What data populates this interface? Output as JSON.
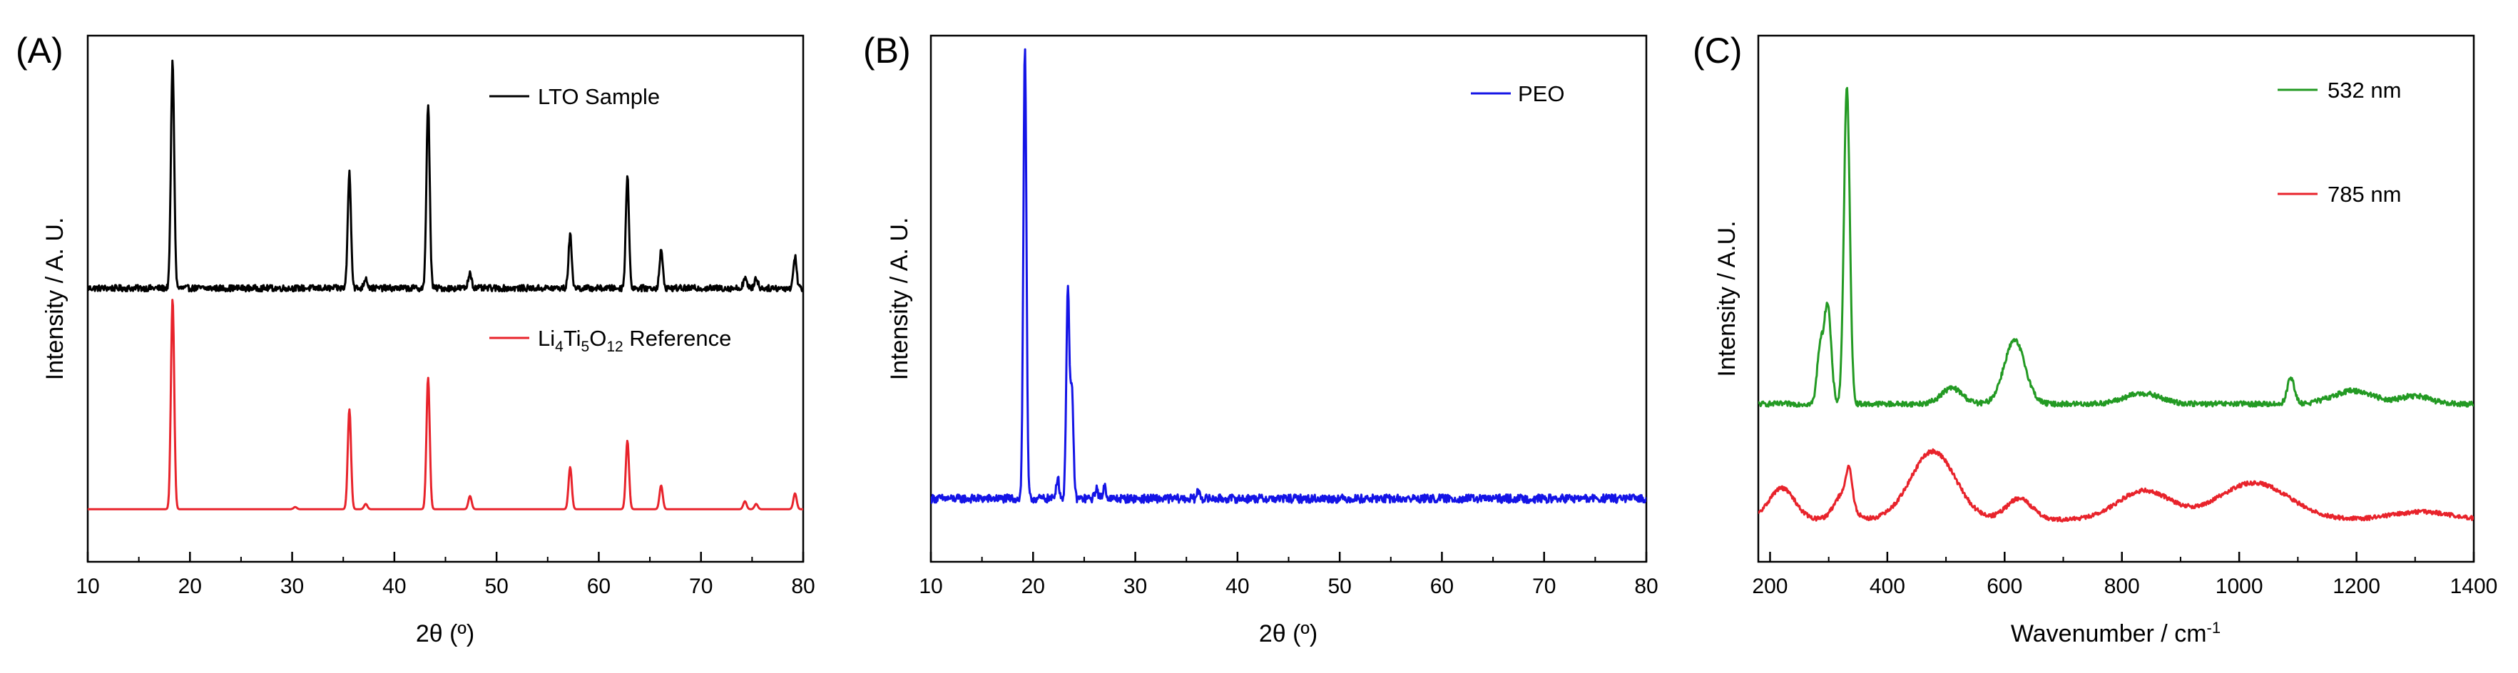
{
  "chart_data": [
    {
      "type": "line",
      "panel_label": "(A)",
      "xlabel": "2θ (º)",
      "ylabel": "Intensity / A. U.",
      "xlim": [
        10,
        80
      ],
      "xticks": [
        "10",
        "20",
        "30",
        "40",
        "50",
        "60",
        "70",
        "80"
      ],
      "yticks": false,
      "legend_placement": "top-right / middle-right, per series",
      "series": [
        {
          "name": "LTO Sample",
          "color": "#000000",
          "baseline": 0.52,
          "noise": 0.006,
          "peaks": [
            {
              "x": 18.3,
              "height": 0.43
            },
            {
              "x": 35.6,
              "height": 0.22
            },
            {
              "x": 37.2,
              "height": 0.02
            },
            {
              "x": 43.3,
              "height": 0.35
            },
            {
              "x": 47.4,
              "height": 0.03
            },
            {
              "x": 57.2,
              "height": 0.1
            },
            {
              "x": 62.8,
              "height": 0.21
            },
            {
              "x": 66.1,
              "height": 0.07
            },
            {
              "x": 74.3,
              "height": 0.02
            },
            {
              "x": 75.4,
              "height": 0.02
            },
            {
              "x": 79.2,
              "height": 0.06
            }
          ]
        },
        {
          "name_parts": [
            "Li",
            "4",
            "Ti",
            "5",
            "O",
            "12",
            " Reference"
          ],
          "color": "#e8232b",
          "baseline": 0.1,
          "noise": 0.0,
          "peaks": [
            {
              "x": 18.3,
              "height": 0.4
            },
            {
              "x": 30.3,
              "height": 0.004
            },
            {
              "x": 35.6,
              "height": 0.19
            },
            {
              "x": 37.2,
              "height": 0.01
            },
            {
              "x": 43.3,
              "height": 0.25
            },
            {
              "x": 47.4,
              "height": 0.025
            },
            {
              "x": 57.2,
              "height": 0.08
            },
            {
              "x": 62.8,
              "height": 0.13
            },
            {
              "x": 66.1,
              "height": 0.045
            },
            {
              "x": 74.3,
              "height": 0.015
            },
            {
              "x": 75.4,
              "height": 0.01
            },
            {
              "x": 79.2,
              "height": 0.03
            }
          ]
        }
      ]
    },
    {
      "type": "line",
      "panel_label": "(B)",
      "xlabel": "2θ (º)",
      "ylabel": "Intensity / A. U.",
      "xlim": [
        10,
        80
      ],
      "xticks": [
        "10",
        "20",
        "30",
        "40",
        "50",
        "60",
        "70",
        "80"
      ],
      "yticks": false,
      "legend_placement": "top-right",
      "series": [
        {
          "name": "PEO",
          "color": "#1414e6",
          "baseline": 0.12,
          "noise": 0.008,
          "peaks": [
            {
              "x": 19.2,
              "height": 0.86
            },
            {
              "x": 22.4,
              "height": 0.04
            },
            {
              "x": 23.4,
              "height": 0.4
            },
            {
              "x": 23.8,
              "height": 0.2
            },
            {
              "x": 26.2,
              "height": 0.02
            },
            {
              "x": 27.0,
              "height": 0.025
            },
            {
              "x": 36.2,
              "height": 0.015
            }
          ]
        }
      ]
    },
    {
      "type": "line",
      "panel_label": "(C)",
      "xlabel": "Wavenumber / cm",
      "xlabel_sup": "-1",
      "ylabel": "Intensity / A.U.",
      "xlim": [
        180,
        1400
      ],
      "xticks": [
        "200",
        "400",
        "600",
        "800",
        "1000",
        "1200",
        "1400"
      ],
      "yticks": false,
      "legend_placement": "top-right",
      "series": [
        {
          "name": "532 nm",
          "color": "#239a23",
          "baseline": 0.3,
          "noise": 0.005,
          "peaks": [
            {
              "x": 285,
              "height": 0.1,
              "width": 5
            },
            {
              "x": 298,
              "height": 0.19,
              "width": 6
            },
            {
              "x": 331,
              "height": 0.6,
              "width": 5
            },
            {
              "x": 510,
              "height": 0.03,
              "width": 18
            },
            {
              "x": 617,
              "height": 0.12,
              "width": 18
            },
            {
              "x": 835,
              "height": 0.02,
              "width": 30
            },
            {
              "x": 1088,
              "height": 0.05,
              "width": 6
            },
            {
              "x": 1195,
              "height": 0.025,
              "width": 35
            },
            {
              "x": 1300,
              "height": 0.015,
              "width": 25
            }
          ]
        },
        {
          "name": "785 nm",
          "color": "#e8232b",
          "baseline": 0.08,
          "noise": 0.004,
          "peaks": [
            {
              "x": 220,
              "height": 0.06,
              "width": 22
            },
            {
              "x": 325,
              "height": 0.05,
              "width": 15
            },
            {
              "x": 335,
              "height": 0.06,
              "width": 5
            },
            {
              "x": 478,
              "height": 0.13,
              "width": 38
            },
            {
              "x": 625,
              "height": 0.04,
              "width": 22
            },
            {
              "x": 838,
              "height": 0.055,
              "width": 45
            },
            {
              "x": 1025,
              "height": 0.07,
              "width": 60
            },
            {
              "x": 1310,
              "height": 0.015,
              "width": 50
            }
          ]
        }
      ]
    }
  ]
}
